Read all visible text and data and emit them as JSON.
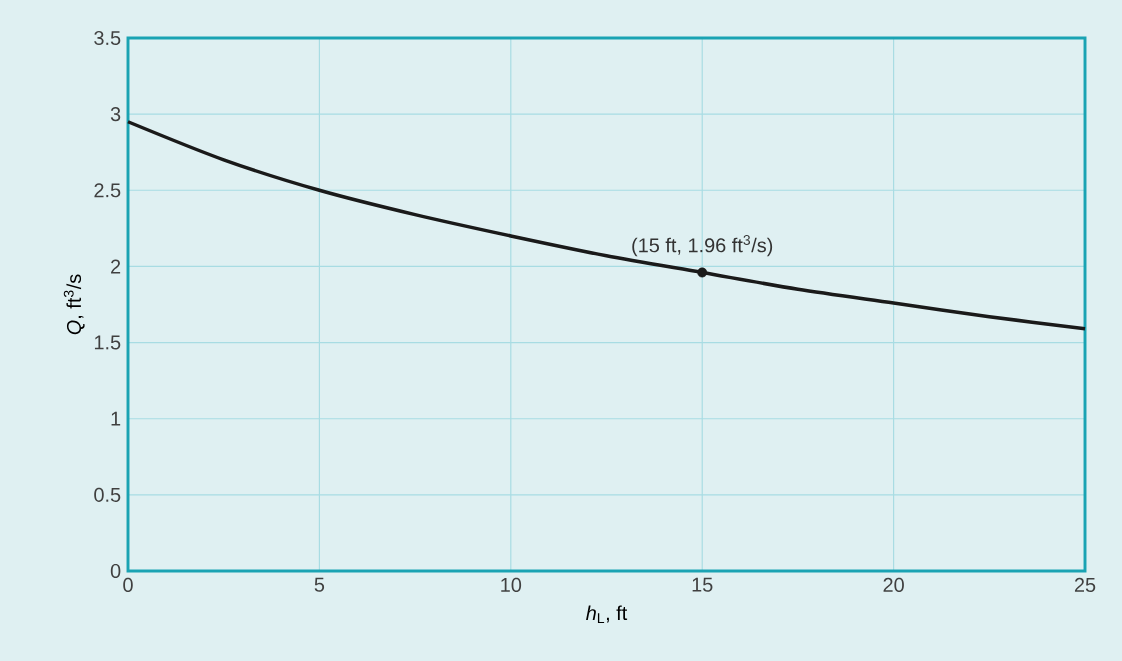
{
  "chart_data": {
    "type": "line",
    "xlabel": "*h*$_{L}$, ft",
    "ylabel": "*Q*, ft$^{3}$/s",
    "xlim": [
      0,
      25
    ],
    "ylim": [
      0,
      3.5
    ],
    "xticks": [
      0,
      5,
      10,
      15,
      20,
      25
    ],
    "yticks": [
      0,
      0.5,
      1,
      1.5,
      2,
      2.5,
      3,
      3.5
    ],
    "grid": true,
    "series": [
      {
        "color": "#1a1a1a",
        "x": [
          0,
          2.5,
          5,
          7.5,
          10,
          12.5,
          15,
          17.5,
          20,
          22.5,
          25
        ],
        "values": [
          2.95,
          2.7,
          2.5,
          2.34,
          2.2,
          2.07,
          1.96,
          1.85,
          1.76,
          1.67,
          1.59
        ]
      },
      {
        "type": "scatter",
        "color": "#1a1a1a",
        "marker": "circle",
        "x": [
          15
        ],
        "values": [
          1.96
        ]
      }
    ],
    "annotations": [
      {
        "text": "(15 ft, 1.96 ft$^{3}$/s)",
        "x": 15,
        "y": 1.96
      }
    ]
  }
}
